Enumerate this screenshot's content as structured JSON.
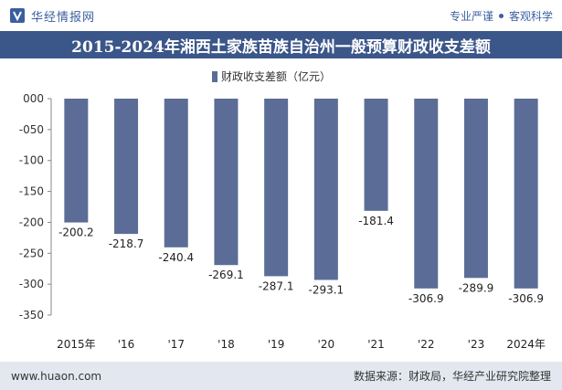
{
  "header": {
    "brand": "华经情报网",
    "tags": [
      "专业严谨",
      "客观科学"
    ]
  },
  "title": "2015-2024年湘西土家族苗族自治州一般预算财政收支差额",
  "footer": {
    "website": "www.huaon.com",
    "source": "数据来源：财政局，华经产业研究院整理"
  },
  "colors": {
    "bar": "#5b6d96",
    "title_bg": "#3b5689",
    "brand": "#3a5fa0"
  },
  "chart_data": {
    "type": "bar",
    "categories": [
      "2015年",
      "'16",
      "'17",
      "'18",
      "'19",
      "'20",
      "'21",
      "'22",
      "'23",
      "2024年"
    ],
    "series": [
      {
        "name": "财政收支差额（亿元）",
        "values": [
          -200.2,
          -218.7,
          -240.4,
          -269.1,
          -287.1,
          -293.1,
          -181.4,
          -306.9,
          -289.9,
          -306.9
        ]
      }
    ],
    "data_labels": [
      "-200.2",
      "-218.7",
      "-240.4",
      "-269.1",
      "-287.1",
      "-293.1",
      "-181.4",
      "-306.9",
      "-289.9",
      "-306.9"
    ],
    "ylim": [
      -350,
      0
    ],
    "yticks": [
      0,
      -50,
      -100,
      -150,
      -200,
      -250,
      -300,
      -350
    ],
    "ytick_labels": [
      "000",
      "-050",
      "-100",
      "-150",
      "-200",
      "-250",
      "-300",
      "-350"
    ],
    "legend_position": "top-center",
    "grid": false
  }
}
